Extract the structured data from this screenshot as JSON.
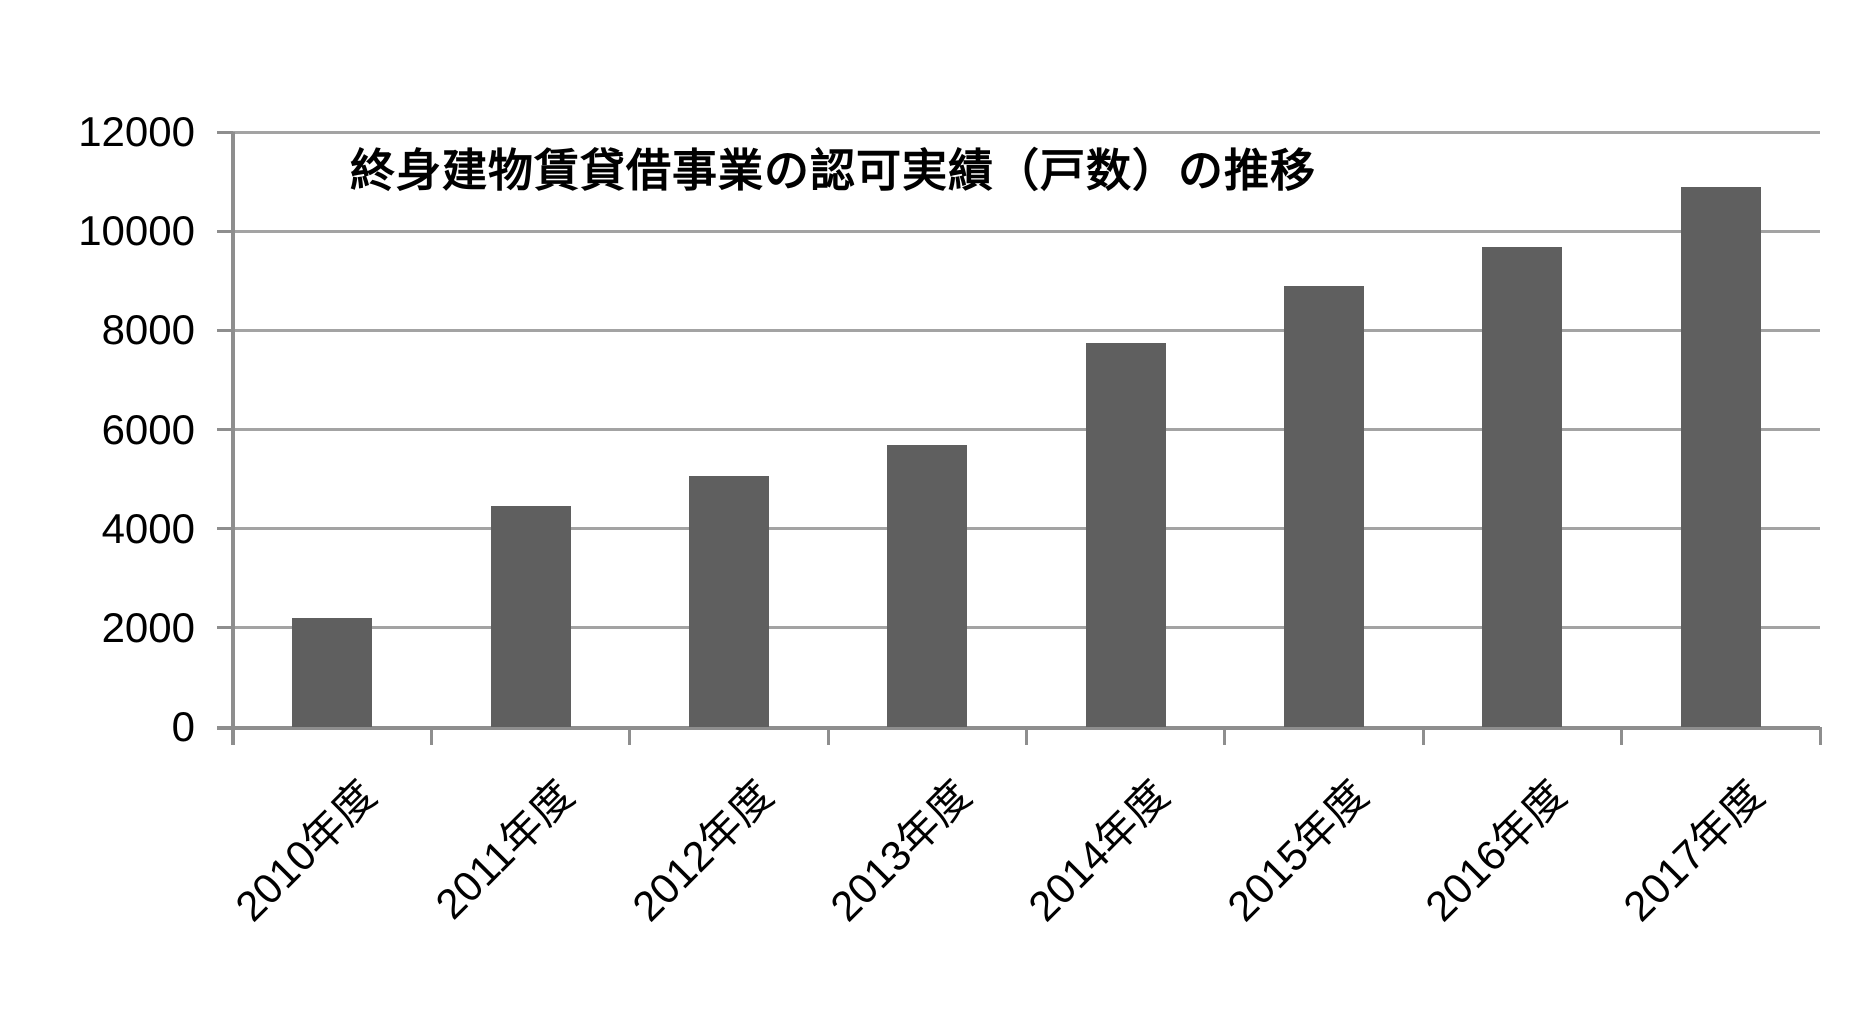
{
  "chart_data": {
    "type": "bar",
    "title": "終身建物賃貸借事業の認可実績（戸数）の推移",
    "categories": [
      "2010年度",
      "2011年度",
      "2012年度",
      "2013年度",
      "2014年度",
      "2015年度",
      "2016年度",
      "2017年度"
    ],
    "values": [
      2200,
      4450,
      5070,
      5690,
      7750,
      8900,
      9680,
      10890
    ],
    "xlabel": "",
    "ylabel": "",
    "ylim": [
      0,
      12000
    ],
    "ytick_interval": 2000,
    "ytick_labels": [
      "0",
      "2000",
      "4000",
      "6000",
      "8000",
      "10000",
      "12000"
    ],
    "grid": true,
    "legend": false,
    "x_label_rotation_deg": -45,
    "colors": {
      "bar": "#5f5f5f",
      "gridline": "#a3a3a3",
      "axis": "#8e8e8e",
      "text": "#000000",
      "background": "#ffffff"
    }
  }
}
